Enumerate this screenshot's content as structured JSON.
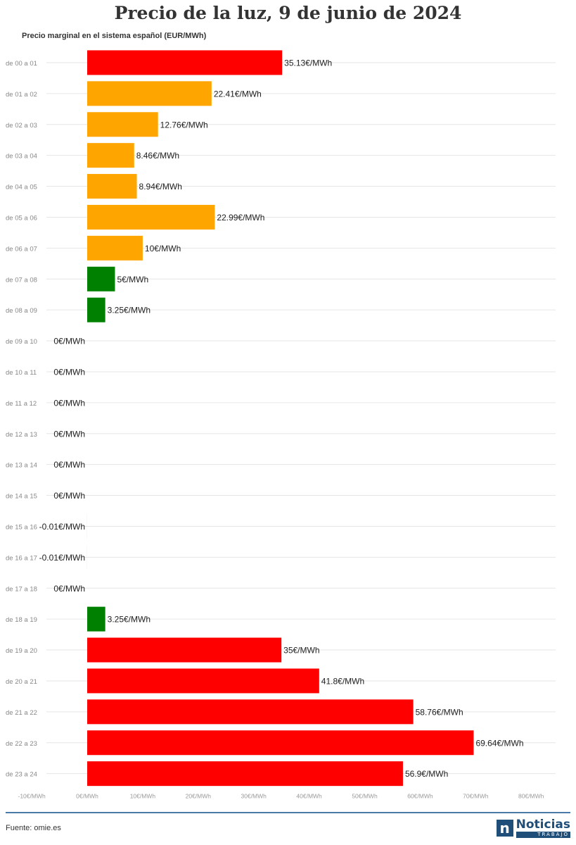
{
  "chart_data": {
    "type": "bar",
    "orientation": "horizontal",
    "title": "Precio de la luz, 9 de junio de 2024",
    "subtitle": "Precio marginal en el sistema español (EUR/MWh)",
    "xlim": [
      -10,
      80
    ],
    "xticks": [
      -10,
      0,
      10,
      20,
      30,
      40,
      50,
      60,
      70,
      80
    ],
    "xtick_labels": [
      "-10€/MWh",
      "0€/MWh",
      "10€/MWh",
      "20€/MWh",
      "30€/MWh",
      "40€/MWh",
      "50€/MWh",
      "60€/MWh",
      "70€/MWh",
      "80€/MWh"
    ],
    "grid": true,
    "categories": [
      "de 00 a 01",
      "de 01 a 02",
      "de 02 a 03",
      "de 03 a 04",
      "de 04 a 05",
      "de 05 a 06",
      "de 06 a 07",
      "de 07 a 08",
      "de 08 a 09",
      "de 09 a 10",
      "de 10 a 11",
      "de 11 a 12",
      "de 12 a 13",
      "de 13 a 14",
      "de 14 a 15",
      "de 15 a 16",
      "de 16 a 17",
      "de 17 a 18",
      "de 18 a 19",
      "de 19 a 20",
      "de 20 a 21",
      "de 21 a 22",
      "de 22 a 23",
      "de 23 a 24"
    ],
    "values": [
      35.13,
      22.41,
      12.76,
      8.46,
      8.94,
      22.99,
      10,
      5,
      3.25,
      0,
      0,
      0,
      0,
      0,
      0,
      -0.01,
      -0.01,
      0,
      3.25,
      35,
      41.8,
      58.76,
      69.64,
      56.9
    ],
    "value_labels": [
      "35.13€/MWh",
      "22.41€/MWh",
      "12.76€/MWh",
      "8.46€/MWh",
      "8.94€/MWh",
      "22.99€/MWh",
      "10€/MWh",
      "5€/MWh",
      "3.25€/MWh",
      "0€/MWh",
      "0€/MWh",
      "0€/MWh",
      "0€/MWh",
      "0€/MWh",
      "0€/MWh",
      "-0.01€/MWh",
      "-0.01€/MWh",
      "0€/MWh",
      "3.25€/MWh",
      "35€/MWh",
      "41.8€/MWh",
      "58.76€/MWh",
      "69.64€/MWh",
      "56.9€/MWh"
    ],
    "colors": [
      "#ff0000",
      "#ffa500",
      "#ffa500",
      "#ffa500",
      "#ffa500",
      "#ffa500",
      "#ffa500",
      "#008000",
      "#008000",
      "#ffa500",
      "#ffa500",
      "#ffa500",
      "#ffa500",
      "#ffa500",
      "#ffa500",
      "#ffa500",
      "#ffa500",
      "#ffa500",
      "#008000",
      "#ff0000",
      "#ff0000",
      "#ff0000",
      "#ff0000",
      "#ff0000"
    ]
  },
  "footer": {
    "source": "Fuente: omie.es",
    "logo_brand": "Noticias",
    "logo_sub": "TRABAJO",
    "logo_mark": "n"
  }
}
